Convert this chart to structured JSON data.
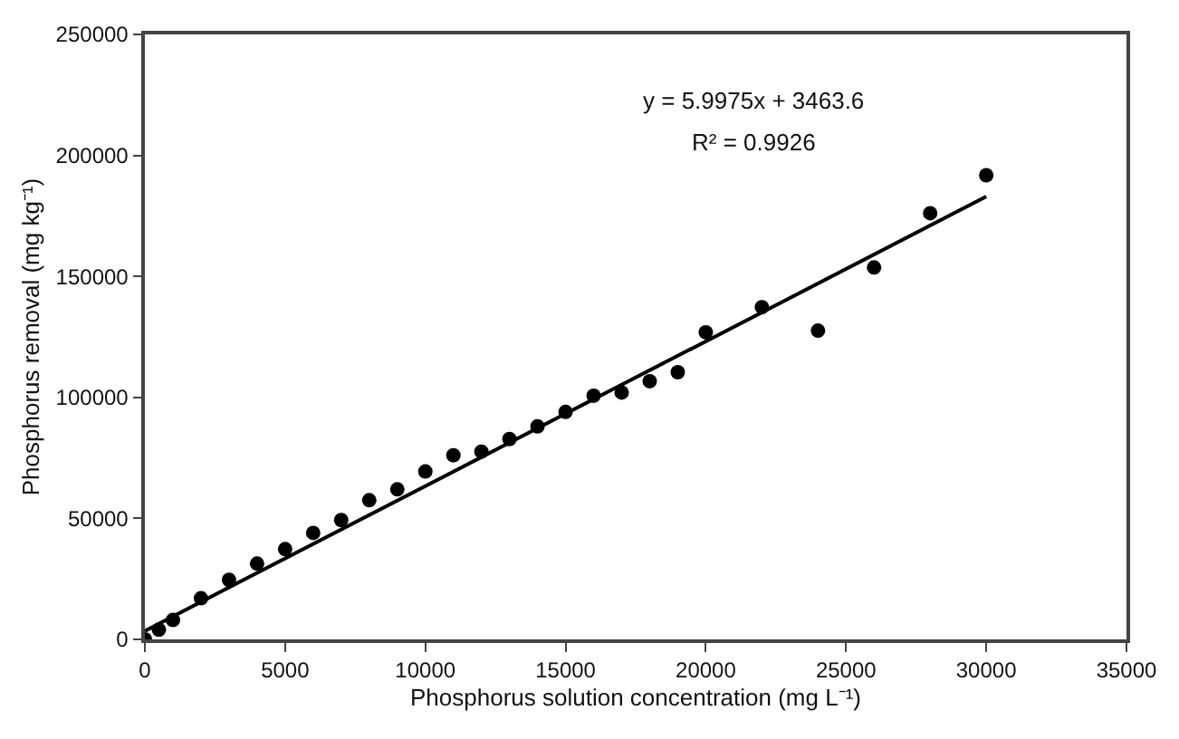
{
  "chart_data": {
    "type": "scatter",
    "xlabel": "Phosphorus solution concentration (mg L⁻¹)",
    "ylabel": "Phosphorus removal (mg kg⁻¹)",
    "annotations": [
      "y = 5.9975x + 3463.6",
      "R² = 0.9926"
    ],
    "xlim": [
      0,
      35000
    ],
    "xticks": [
      0,
      5000,
      10000,
      15000,
      20000,
      25000,
      30000,
      35000
    ],
    "ylim": [
      0,
      250000
    ],
    "yticks": [
      0,
      50000,
      100000,
      150000,
      200000,
      250000
    ],
    "marker": "circle",
    "series": [
      {
        "color": "#000000",
        "x": [
          0,
          500,
          1000,
          2000,
          3000,
          4000,
          5000,
          6000,
          7000,
          8000,
          9000,
          10000,
          11000,
          12000,
          13000,
          14000,
          15000,
          16000,
          17000,
          18000,
          19000,
          20000,
          22000,
          24000,
          26000,
          28000,
          30000
        ],
        "values": [
          0,
          4000,
          8000,
          17000,
          24600,
          31300,
          37300,
          44000,
          49300,
          57500,
          62000,
          69400,
          76100,
          77600,
          82800,
          88000,
          94000,
          100700,
          102000,
          106700,
          110400,
          126900,
          137300,
          127600,
          153700,
          176100,
          191800
        ]
      },
      {
        "type": "line",
        "color": "#000000",
        "line_style": "solid",
        "marker": "none",
        "x": [
          0,
          30000
        ],
        "values": [
          3500,
          183000
        ]
      }
    ]
  }
}
